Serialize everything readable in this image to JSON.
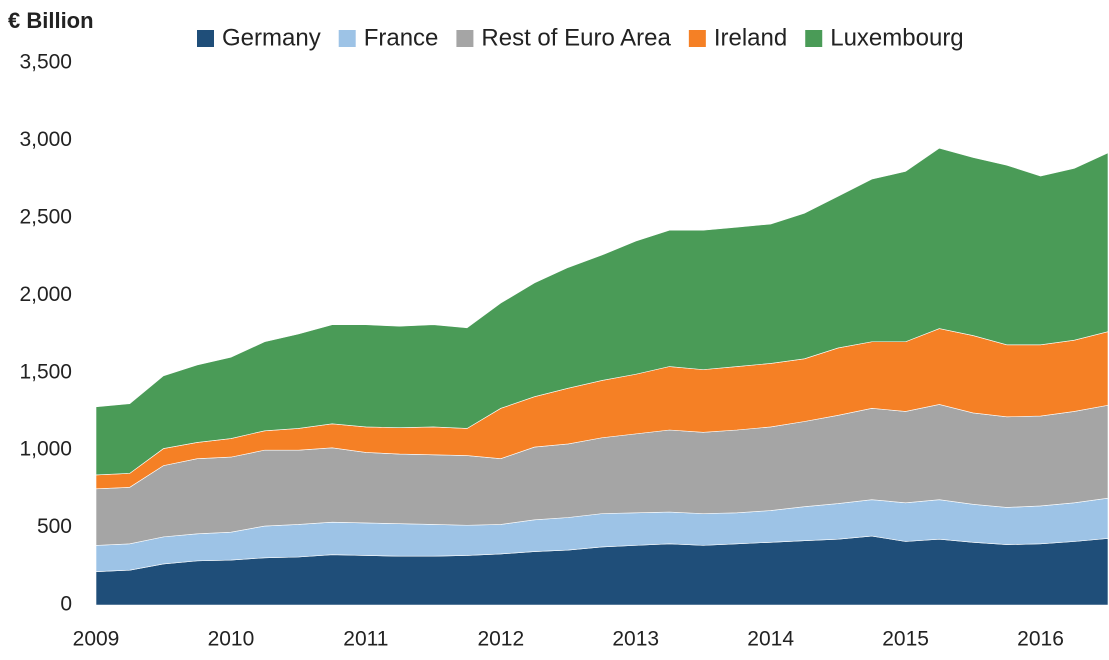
{
  "chart_data": {
    "type": "stacked_area",
    "y_label": "€ Billion",
    "x": [
      2009,
      2009.25,
      2009.5,
      2009.75,
      2010,
      2010.25,
      2010.5,
      2010.75,
      2011,
      2011.25,
      2011.5,
      2011.75,
      2012,
      2012.25,
      2012.5,
      2012.75,
      2013,
      2013.25,
      2013.5,
      2013.75,
      2014,
      2014.25,
      2014.5,
      2014.75,
      2015,
      2015.25,
      2015.5,
      2015.75,
      2016,
      2016.25,
      2016.5
    ],
    "series": [
      {
        "name": "Germany",
        "color": "#1f4e79",
        "values": [
          215,
          225,
          265,
          285,
          290,
          305,
          310,
          325,
          320,
          315,
          315,
          320,
          330,
          345,
          355,
          375,
          385,
          395,
          385,
          395,
          405,
          415,
          425,
          445,
          410,
          425,
          405,
          390,
          395,
          410,
          430
        ]
      },
      {
        "name": "France",
        "color": "#9dc3e6",
        "values": [
          170,
          170,
          175,
          175,
          180,
          205,
          210,
          210,
          210,
          210,
          205,
          195,
          190,
          205,
          210,
          215,
          210,
          205,
          205,
          200,
          205,
          220,
          230,
          235,
          250,
          255,
          245,
          240,
          245,
          250,
          260
        ]
      },
      {
        "name": "Rest of Euro Area",
        "color": "#a5a5a5",
        "values": [
          365,
          365,
          460,
          485,
          485,
          490,
          480,
          480,
          455,
          450,
          450,
          450,
          425,
          470,
          475,
          490,
          510,
          530,
          525,
          535,
          540,
          550,
          570,
          590,
          590,
          615,
          590,
          585,
          580,
          590,
          600
        ]
      },
      {
        "name": "Ireland",
        "color": "#f58025",
        "values": [
          90,
          90,
          110,
          105,
          120,
          125,
          140,
          155,
          165,
          170,
          180,
          175,
          325,
          325,
          360,
          370,
          385,
          410,
          405,
          410,
          410,
          405,
          435,
          430,
          450,
          490,
          500,
          465,
          460,
          460,
          475
        ]
      },
      {
        "name": "Luxembourg",
        "color": "#4a9b57",
        "values": [
          440,
          450,
          470,
          500,
          525,
          575,
          610,
          640,
          660,
          655,
          660,
          650,
          680,
          735,
          780,
          810,
          860,
          880,
          900,
          900,
          900,
          940,
          980,
          1050,
          1100,
          1165,
          1150,
          1160,
          1090,
          1110,
          1155
        ]
      }
    ],
    "xlim": [
      2009,
      2016.5
    ],
    "xticks": [
      2009,
      2010,
      2011,
      2012,
      2013,
      2014,
      2015,
      2016
    ],
    "ylim": [
      0,
      3500
    ],
    "yticks": [
      0,
      {
        "value": 500,
        "label": "500"
      },
      {
        "value": 1000,
        "label": "1,000"
      },
      {
        "value": 1500,
        "label": "1,500"
      },
      {
        "value": 2000,
        "label": "2,000"
      },
      {
        "value": 2500,
        "label": "2,500"
      },
      {
        "value": 3000,
        "label": "3,000"
      },
      {
        "value": 3500,
        "label": "3,500"
      }
    ],
    "legend": "top"
  }
}
